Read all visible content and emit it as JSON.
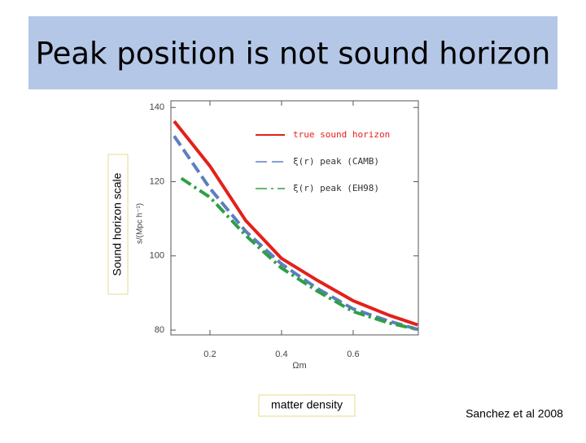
{
  "slide_title": "Peak position is not sound horizon",
  "side_label": "Sound horizon scale",
  "bottom_label": "matter density",
  "credit": "Sanchez et al 2008",
  "chart_data": {
    "type": "line",
    "xlabel": "Ωm",
    "ylabel": "s/(Mpc h⁻¹)",
    "xlim": [
      0.091,
      0.782
    ],
    "ylim": [
      78.7,
      141.8
    ],
    "xticks": [
      0.2,
      0.4,
      0.6
    ],
    "yticks": [
      80,
      100,
      120,
      140
    ],
    "legend": "upper right",
    "series": [
      {
        "name": "true sound horizon",
        "color": "#e3201b",
        "linestyle": "solid",
        "width": 4,
        "x": [
          0.1,
          0.2,
          0.3,
          0.4,
          0.5,
          0.6,
          0.7,
          0.78
        ],
        "values": [
          136.3,
          124.2,
          109.5,
          99.3,
          93.4,
          87.9,
          84,
          81.4
        ]
      },
      {
        "name": "ξ(r) peak (CAMB)",
        "color": "#5b7fc0",
        "linestyle": "dashed",
        "width": 4,
        "x": [
          0.1,
          0.2,
          0.3,
          0.4,
          0.5,
          0.6,
          0.7,
          0.78
        ],
        "values": [
          132.3,
          118.2,
          106.6,
          97.8,
          91.2,
          85.7,
          82.4,
          80.2
        ]
      },
      {
        "name": "ξ(r) peak (EH98)",
        "color": "#2ea043",
        "linestyle": "dashdot",
        "width": 4,
        "x": [
          0.12,
          0.2,
          0.3,
          0.4,
          0.5,
          0.6,
          0.7,
          0.78
        ],
        "values": [
          120.9,
          115.8,
          105.5,
          96.7,
          90.5,
          85,
          81.9,
          80.2
        ]
      }
    ]
  }
}
